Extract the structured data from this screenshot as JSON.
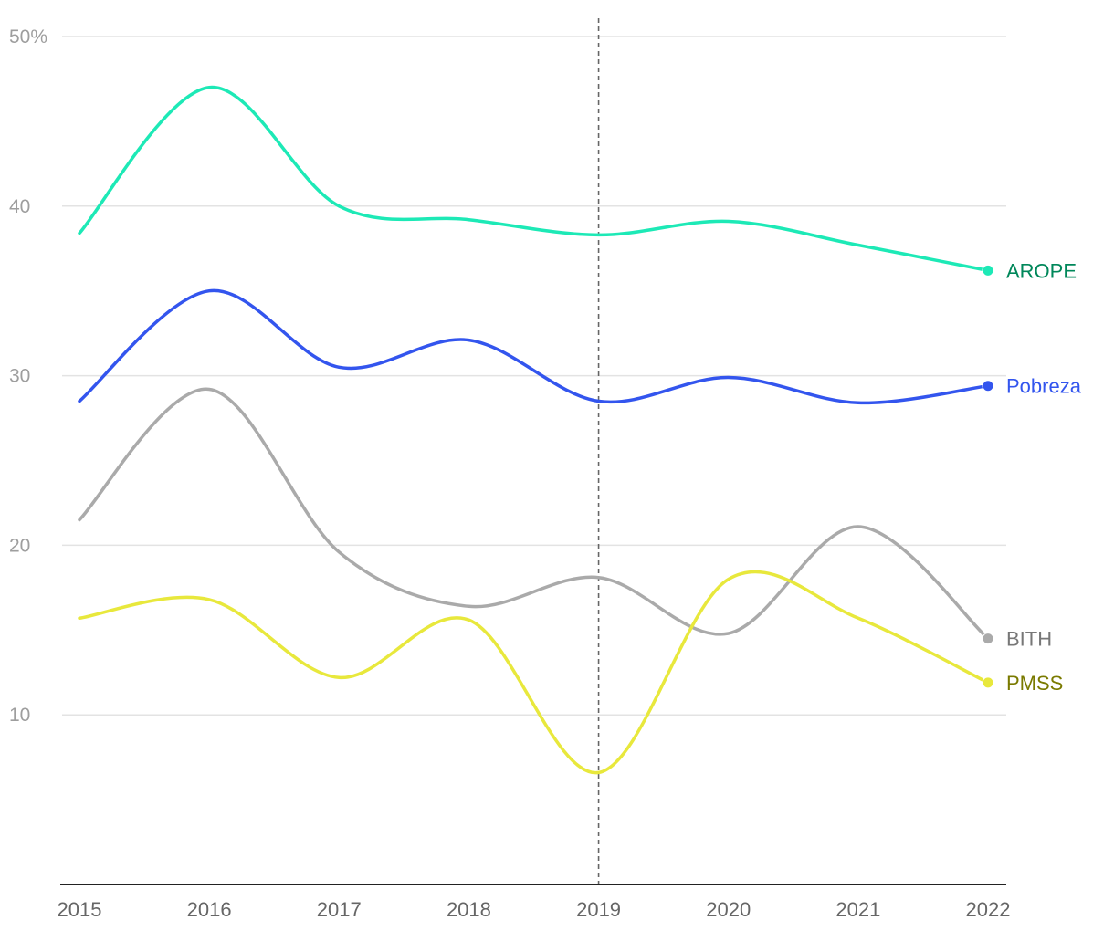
{
  "chart_data": {
    "type": "line",
    "x": [
      2015,
      2016,
      2017,
      2018,
      2019,
      2020,
      2021,
      2022
    ],
    "x_tick_labels": [
      "2015",
      "2016",
      "2017",
      "2018",
      "2019",
      "2020",
      "2021",
      "2022"
    ],
    "y_ticks": [
      {
        "value": 10,
        "label": "10"
      },
      {
        "value": 20,
        "label": "20"
      },
      {
        "value": 30,
        "label": "30"
      },
      {
        "value": 40,
        "label": "40"
      },
      {
        "value": 50,
        "label": "50%"
      }
    ],
    "ylim": [
      0,
      50
    ],
    "grid": true,
    "reference_line_x": 2019,
    "series": [
      {
        "name": "AROPE",
        "color": "#1de9b6",
        "label_color": "#00875a",
        "values": [
          38.4,
          47.0,
          40.0,
          39.2,
          38.3,
          39.1,
          37.7,
          36.2
        ]
      },
      {
        "name": "Pobreza",
        "color": "#3355ee",
        "label_color": "#3355ee",
        "values": [
          28.5,
          35.0,
          30.5,
          32.1,
          28.5,
          29.9,
          28.4,
          29.4
        ]
      },
      {
        "name": "BITH",
        "color": "#aaaaaa",
        "label_color": "#777777",
        "values": [
          21.5,
          29.2,
          19.6,
          16.4,
          18.1,
          14.8,
          21.1,
          14.5
        ]
      },
      {
        "name": "PMSS",
        "color": "#e8e83c",
        "label_color": "#7a7a00",
        "values": [
          15.7,
          16.8,
          12.2,
          15.6,
          6.6,
          18.0,
          15.7,
          11.9
        ]
      }
    ]
  }
}
